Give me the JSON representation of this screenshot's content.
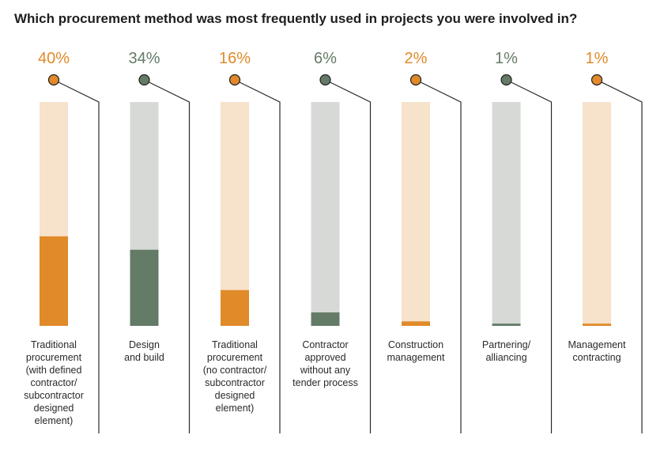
{
  "chart_data": {
    "type": "bar",
    "title": "Which procurement method was most frequently used in projects you were involved in?",
    "xlabel": "",
    "ylabel": "",
    "ylim": [
      0,
      100
    ],
    "value_suffix": "%",
    "categories": [
      "Traditional procurement (with defined contractor/ subcontractor designed element)",
      "Design and build",
      "Traditional procurement (no contractor/ subcontractor designed element)",
      "Contractor approved without any tender process",
      "Construction management",
      "Partnering/ alliancing",
      "Management contracting"
    ],
    "category_lines": [
      [
        "Traditional",
        "procurement",
        "(with defined",
        "contractor/",
        "subcontractor",
        "designed",
        "element)"
      ],
      [
        "Design",
        "and build"
      ],
      [
        "Traditional",
        "procurement",
        "(no contractor/",
        "subcontractor",
        "designed",
        "element)"
      ],
      [
        "Contractor",
        "approved",
        "without any",
        "tender process"
      ],
      [
        "Construction",
        "management"
      ],
      [
        "Partnering/",
        "alliancing"
      ],
      [
        "Management",
        "contracting"
      ]
    ],
    "values": [
      40,
      34,
      16,
      6,
      2,
      1,
      1
    ],
    "labels": [
      "40%",
      "34%",
      "16%",
      "6%",
      "2%",
      "1%",
      "1%"
    ],
    "colors": [
      "orange",
      "green",
      "orange",
      "green",
      "orange",
      "green",
      "orange"
    ]
  },
  "palette": {
    "orange": "#e08a2a",
    "orange_track": "#f7e2cb",
    "green": "#647b67",
    "green_track": "#d6d9d5",
    "line": "#2a2a2a"
  }
}
